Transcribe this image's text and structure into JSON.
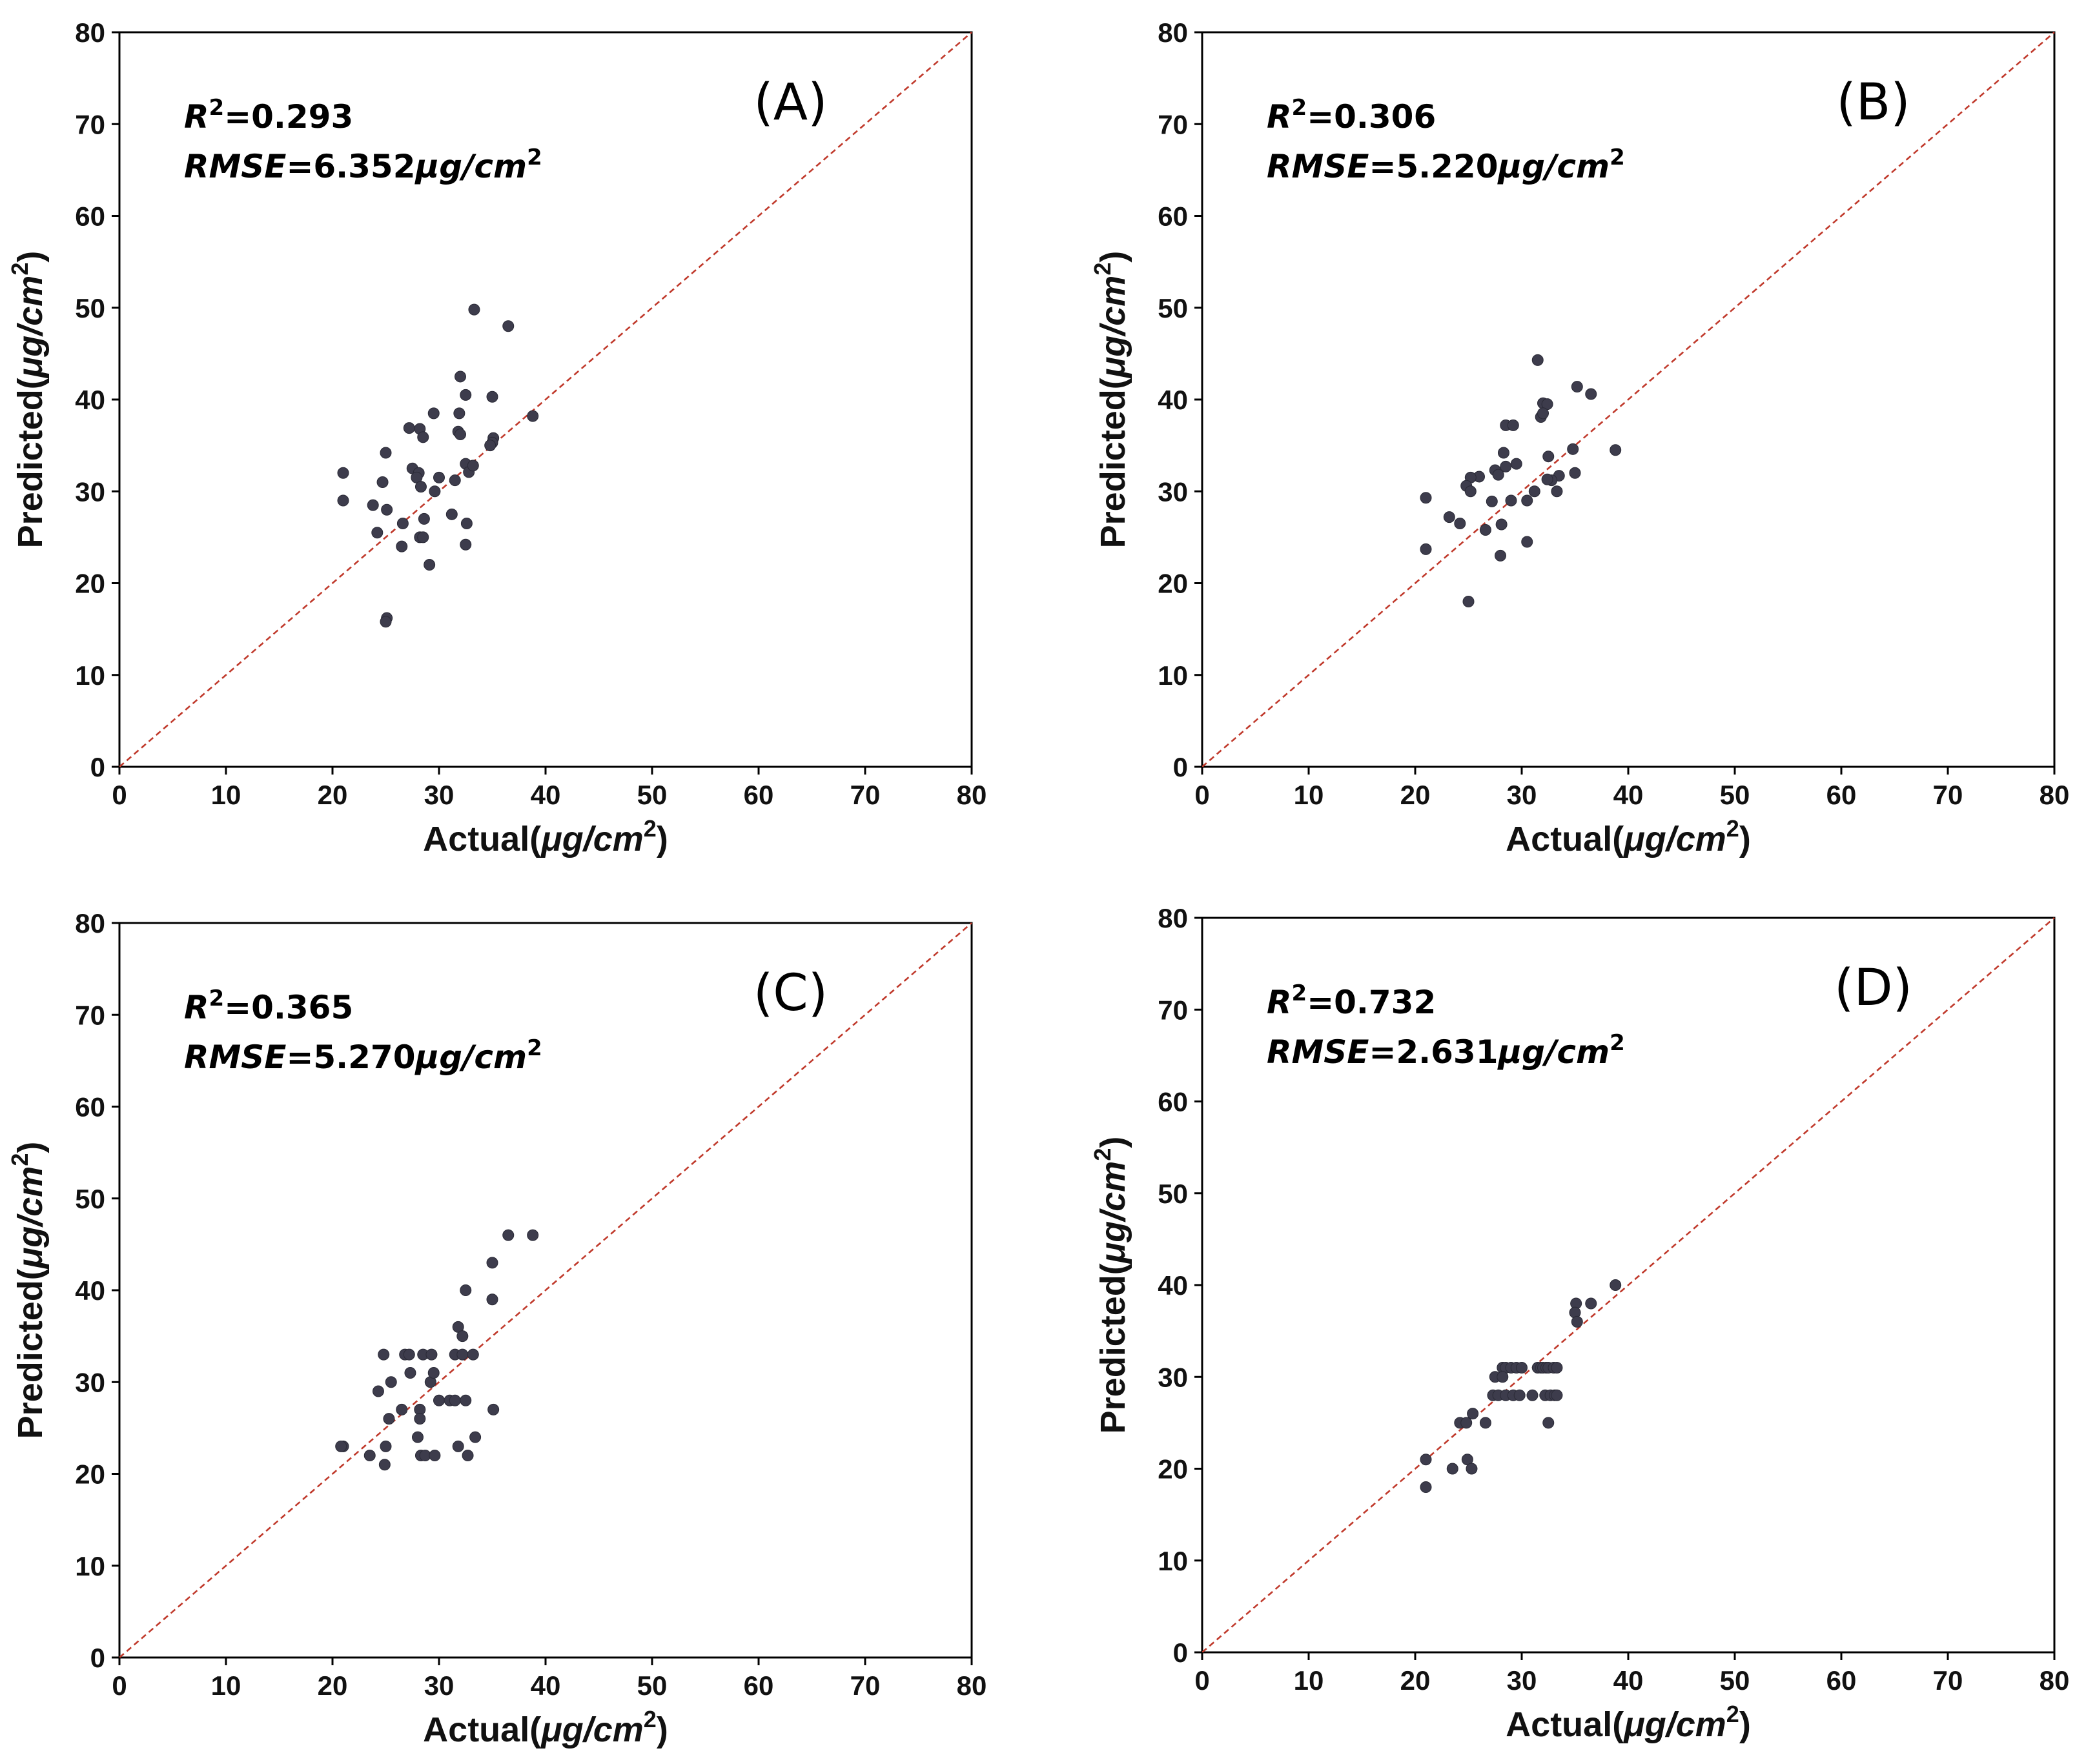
{
  "colors": {
    "point": "#3d3c4c",
    "identity_line": "#c0392b",
    "frame": "#000000",
    "text": "#111111"
  },
  "common": {
    "x_ticks": [
      0,
      10,
      20,
      30,
      40,
      50,
      60,
      70,
      80
    ],
    "y_ticks": [
      0,
      10,
      20,
      30,
      40,
      50,
      60,
      70,
      80
    ]
  },
  "chart_data": [
    {
      "type": "scatter",
      "panel_label": "(A)",
      "r2_label": "R",
      "r2_sup": "2",
      "r2_value": "=0.293",
      "rmse_label": "RMSE",
      "rmse_value": "=6.352",
      "unit_unit": "μg/cm",
      "unit_sup": "2",
      "xlabel": "Actual",
      "ylabel": "Predicted",
      "xlim": [
        0,
        80
      ],
      "ylim": [
        0,
        80
      ],
      "reference_line": "y = x",
      "x": [
        33.3,
        36.5,
        32.0,
        31.9,
        35.0,
        32.5,
        29.5,
        28.2,
        27.2,
        31.8,
        32.0,
        28.5,
        27.5,
        28.1,
        38.8,
        35.1,
        35.0,
        34.8,
        25.0,
        21.0,
        27.9,
        32.5,
        32.8,
        33.2,
        31.5,
        30.0,
        29.6,
        28.3,
        23.8,
        24.7,
        21.0,
        25.1,
        26.6,
        28.6,
        31.2,
        32.6,
        28.2,
        24.2,
        26.5,
        28.5,
        29.1,
        32.5,
        25.1,
        25.0
      ],
      "y": [
        49.8,
        48.0,
        42.5,
        38.5,
        40.3,
        40.5,
        38.5,
        36.8,
        36.9,
        36.5,
        36.2,
        35.9,
        32.5,
        32.0,
        38.2,
        35.8,
        35.3,
        35.0,
        34.2,
        32.0,
        31.5,
        33.0,
        32.1,
        32.8,
        31.2,
        31.5,
        30.0,
        30.5,
        28.5,
        31.0,
        29.0,
        28.0,
        26.5,
        27.0,
        27.5,
        26.5,
        25.0,
        25.5,
        24.0,
        25.0,
        22.0,
        24.2,
        16.2,
        15.8
      ]
    },
    {
      "type": "scatter",
      "panel_label": "(B)",
      "r2_label": "R",
      "r2_sup": "2",
      "r2_value": "=0.306",
      "rmse_label": "RMSE",
      "rmse_value": "=5.220",
      "unit_unit": "μg/cm",
      "unit_sup": "2",
      "xlabel": "Actual",
      "ylabel": "Predicted",
      "xlim": [
        0,
        80
      ],
      "ylim": [
        0,
        80
      ],
      "reference_line": "y = x",
      "x": [
        31.5,
        35.2,
        36.5,
        32.0,
        32.4,
        31.8,
        32.0,
        28.5,
        29.2,
        28.3,
        38.8,
        34.8,
        32.5,
        33.5,
        32.8,
        35.0,
        27.5,
        29.5,
        28.5,
        27.8,
        26.0,
        25.2,
        24.8,
        27.2,
        29.0,
        30.5,
        31.2,
        33.3,
        32.4,
        21.0,
        25.2,
        23.2,
        24.2,
        26.6,
        28.1,
        30.5,
        28.0,
        21.0,
        25.0
      ],
      "y": [
        44.3,
        41.4,
        40.6,
        39.6,
        39.5,
        38.1,
        38.5,
        37.2,
        37.2,
        34.2,
        34.5,
        34.6,
        33.8,
        31.7,
        31.2,
        32.0,
        32.3,
        33.0,
        32.7,
        31.8,
        31.6,
        31.5,
        30.6,
        28.9,
        29.0,
        29.0,
        30.0,
        30.0,
        31.3,
        29.3,
        30.0,
        27.2,
        26.5,
        25.8,
        26.4,
        24.5,
        23.0,
        23.7,
        18.0
      ]
    },
    {
      "type": "scatter",
      "panel_label": "(C)",
      "r2_label": "R",
      "r2_sup": "2",
      "r2_value": "=0.365",
      "rmse_label": "RMSE",
      "rmse_value": "=5.270",
      "unit_unit": "μg/cm",
      "unit_sup": "2",
      "xlabel": "Actual",
      "ylabel": "Predicted",
      "xlim": [
        0,
        80
      ],
      "ylim": [
        0,
        80
      ],
      "reference_line": "y = x",
      "x": [
        36.5,
        38.8,
        35.0,
        35.0,
        32.5,
        31.8,
        32.2,
        24.8,
        26.8,
        27.2,
        28.5,
        29.3,
        31.5,
        32.2,
        33.2,
        24.3,
        25.5,
        27.3,
        29.2,
        29.5,
        30.0,
        31.0,
        31.5,
        28.2,
        26.5,
        25.3,
        35.1,
        21.0,
        20.8,
        23.5,
        25.0,
        28.3,
        28.7,
        28.2,
        28.0,
        29.6,
        31.8,
        32.5,
        33.4,
        32.7,
        24.9
      ],
      "y": [
        46.0,
        46.0,
        43.0,
        39.0,
        40.0,
        36.0,
        35.0,
        33.0,
        33.0,
        33.0,
        33.0,
        33.0,
        33.0,
        33.0,
        33.0,
        29.0,
        30.0,
        31.0,
        30.0,
        31.0,
        28.0,
        28.0,
        28.0,
        27.0,
        27.0,
        26.0,
        27.0,
        23.0,
        23.0,
        22.0,
        23.0,
        22.0,
        22.0,
        26.0,
        24.0,
        22.0,
        23.0,
        28.0,
        24.0,
        22.0,
        21.0
      ]
    },
    {
      "type": "scatter",
      "panel_label": "(D)",
      "r2_label": "R",
      "r2_sup": "2",
      "r2_value": "=0.732",
      "rmse_label": "RMSE",
      "rmse_value": "=2.631",
      "unit_unit": "μg/cm",
      "unit_sup": "2",
      "xlabel": "Actual",
      "ylabel": "Predicted",
      "xlim": [
        0,
        80
      ],
      "ylim": [
        0,
        80
      ],
      "reference_line": "y = x",
      "x": [
        38.8,
        36.5,
        35.1,
        35.0,
        35.2,
        28.2,
        28.5,
        29.0,
        29.5,
        30.0,
        31.5,
        31.8,
        32.0,
        32.3,
        32.5,
        33.0,
        33.3,
        27.3,
        27.8,
        28.5,
        29.2,
        29.8,
        31.0,
        32.2,
        32.7,
        33.1,
        33.3,
        24.2,
        24.8,
        25.4,
        26.6,
        27.5,
        32.5,
        21.0,
        23.5,
        24.9,
        25.3,
        21.0,
        28.2
      ],
      "y": [
        40.0,
        38.0,
        38.0,
        37.0,
        36.0,
        31.0,
        31.0,
        31.0,
        31.0,
        31.0,
        31.0,
        31.0,
        31.0,
        31.0,
        31.0,
        31.0,
        31.0,
        28.0,
        28.0,
        28.0,
        28.0,
        28.0,
        28.0,
        28.0,
        28.0,
        28.0,
        28.0,
        25.0,
        25.0,
        26.0,
        25.0,
        30.0,
        25.0,
        21.0,
        20.0,
        21.0,
        20.0,
        18.0,
        30.0
      ]
    }
  ]
}
